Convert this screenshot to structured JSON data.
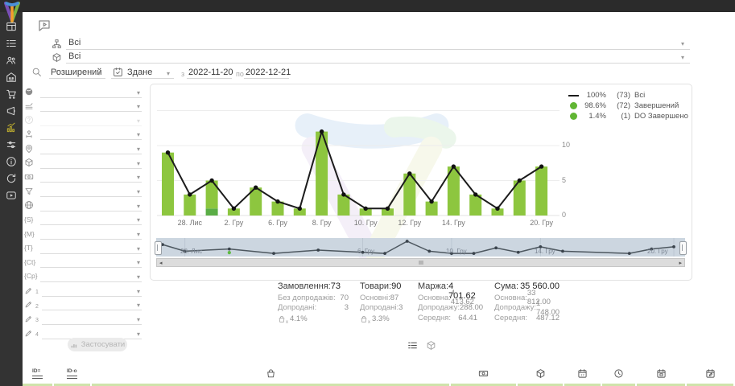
{
  "colors": {
    "topbar_bg": "#2b2b2b",
    "sidebar_bg": "#333333",
    "active_icon": "#bfae2f",
    "bar_green": "#8dc63f",
    "bar_dark_green": "#5aad46",
    "line_black": "#1c1c1c",
    "legend_dot_green": "#61b634",
    "navigator_bg": "#ccd6e0",
    "table_stripe_green": "#cfe3ab"
  },
  "sidebar": {
    "items": [
      {
        "icon": "dashboard"
      },
      {
        "icon": "orders-list"
      },
      {
        "icon": "customers"
      },
      {
        "icon": "company"
      },
      {
        "icon": "cart"
      },
      {
        "icon": "marketing"
      },
      {
        "icon": "statistics",
        "active": true
      },
      {
        "icon": "settings"
      },
      {
        "icon": "info"
      },
      {
        "icon": "sync"
      },
      {
        "icon": "video-tutorials"
      }
    ]
  },
  "header": {
    "help_icon": "video-help-bubble"
  },
  "filters": {
    "group_value": "Всі",
    "product_value": "Всі",
    "mode_label": "Розширений",
    "date_type_label": "Здане",
    "from_label": "з",
    "from_value": "2022-11-20",
    "to_label": "по",
    "to_value": "2022-12-21",
    "side_rows": [
      {
        "icon": "sphere"
      },
      {
        "icon": "layers"
      },
      {
        "icon": "question",
        "disabled": true
      },
      {
        "icon": "person-network"
      },
      {
        "icon": "map-pin"
      },
      {
        "icon": "cube"
      },
      {
        "icon": "banknote"
      },
      {
        "icon": "funnel"
      },
      {
        "icon": "globe"
      },
      {
        "badge": "{S}"
      },
      {
        "badge": "{M}"
      },
      {
        "badge": "{T}"
      },
      {
        "badge": "{Ct}"
      },
      {
        "badge": "{Cp}"
      },
      {
        "pencil": "1"
      },
      {
        "pencil": "2"
      },
      {
        "pencil": "3"
      },
      {
        "pencil": "4"
      }
    ],
    "apply_label": "Застосувати"
  },
  "chart_data": {
    "type": "bar",
    "stacked": true,
    "categories": [
      "",
      "28. Лис",
      "",
      "2. Гру",
      "",
      "6. Гру",
      "",
      "8. Гру",
      "",
      "10. Гру",
      "",
      "12. Гру",
      "",
      "14. Гру",
      "",
      "",
      "",
      "20. Гру"
    ],
    "series": [
      {
        "name": "Всі",
        "type": "line",
        "color": "#1c1c1c",
        "values": [
          9,
          3,
          5,
          1,
          4,
          2,
          1,
          12,
          3,
          1,
          1,
          6,
          2,
          7,
          3,
          1,
          5,
          7
        ]
      },
      {
        "name": "Завершений",
        "type": "bar",
        "color": "#8dc63f",
        "values": [
          9,
          3,
          4,
          1,
          4,
          2,
          1,
          12,
          3,
          1,
          1,
          6,
          2,
          7,
          3,
          1,
          5,
          7
        ]
      },
      {
        "name": "DO Завершено",
        "type": "bar",
        "color": "#5aad46",
        "values": [
          0,
          0,
          1,
          0,
          0,
          0,
          0,
          0,
          0,
          0,
          0,
          0,
          0,
          0,
          0,
          0,
          0,
          0
        ]
      }
    ],
    "ylim": [
      0,
      15
    ],
    "yticks": [
      "10",
      "5",
      "0"
    ],
    "grid": "horizontal",
    "legend_position": "top-right",
    "legend": [
      {
        "swatch": "line",
        "pct": "100%",
        "count": "(73)",
        "label": "Всі"
      },
      {
        "swatch": "dot",
        "pct": "98.6%",
        "count": "(72)",
        "label": "Завершений"
      },
      {
        "swatch": "dot",
        "pct": "1.4%",
        "count": "(1)",
        "label": "DO Завершено"
      }
    ],
    "navigator_labels": [
      "28. Лис",
      "6. Гру",
      "10. Гру",
      "14. Гру",
      "20. Гру"
    ]
  },
  "stats": {
    "columns": [
      {
        "title": "Замовлення:",
        "value": "73",
        "rows": [
          {
            "label": "Без допродажів:",
            "value": "70"
          },
          {
            "label": "Допродані:",
            "value": "3"
          }
        ],
        "upsell_icon": "bag-x",
        "upsell_pct": "4.1%"
      },
      {
        "title": "Товари:",
        "value": "90",
        "rows": [
          {
            "label": "Основні:",
            "value": "87"
          },
          {
            "label": "Допродані:",
            "value": "3"
          }
        ],
        "upsell_icon": "bag-x",
        "upsell_pct": "3.3%"
      },
      {
        "title": "Маржа:",
        "value": "4 701.62",
        "rows": [
          {
            "label": "Основна:",
            "value": "4 413.62"
          },
          {
            "label": "Допродажу:",
            "value": "288.00"
          },
          {
            "label": "Середня:",
            "value": "64.41"
          }
        ]
      },
      {
        "title": "Сума:",
        "value": "35 560.00",
        "rows": [
          {
            "label": "Основна:",
            "value": "33 812.00"
          },
          {
            "label": "Допродажу:",
            "value": "1 748.00"
          },
          {
            "label": "Середня:",
            "value": "487.12"
          }
        ]
      }
    ]
  },
  "view_toggle": {
    "icons": [
      "orders-list",
      "cube"
    ]
  },
  "table_header": {
    "columns": [
      {
        "icon": "order-id"
      },
      {
        "icon": "external-id"
      },
      {
        "icon": "bag"
      },
      {
        "icon": "banknote"
      },
      {
        "icon": "package"
      },
      {
        "icon": "calendar-date"
      },
      {
        "icon": "clock"
      },
      {
        "icon": "calendar-created"
      },
      {
        "icon": "calendar-updated"
      }
    ]
  }
}
